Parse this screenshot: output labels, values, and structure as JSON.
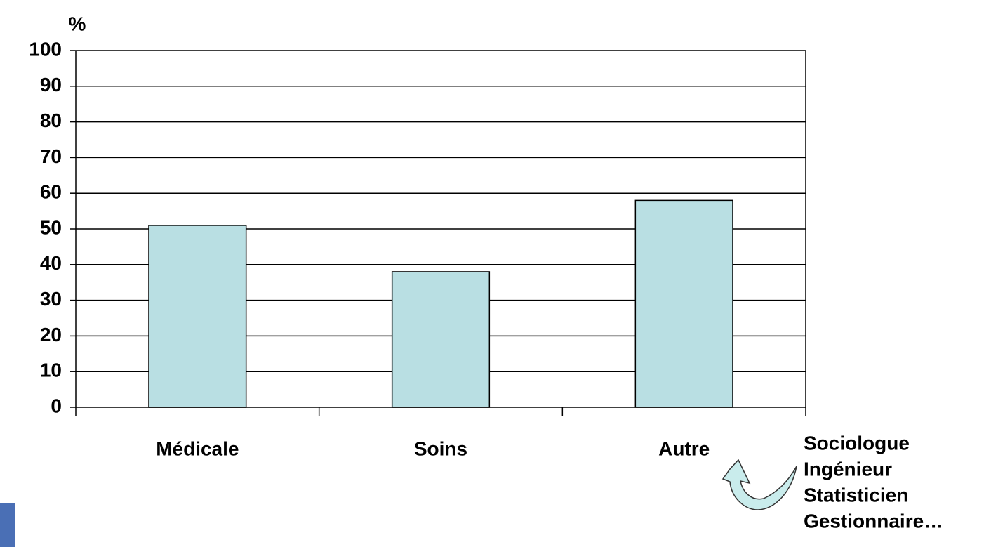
{
  "chart_data": {
    "type": "bar",
    "ylabel": "%",
    "categories": [
      "Médicale",
      "Soins",
      "Autre"
    ],
    "values": [
      51,
      38,
      58
    ],
    "color": "#b9dfe3",
    "ylim": [
      0,
      100
    ],
    "yticks": [
      0,
      10,
      20,
      30,
      40,
      50,
      60,
      70,
      80,
      90,
      100
    ],
    "grid": true,
    "annotations": [
      "Sociologue",
      "Ingénieur",
      "Statisticien",
      "Gestionnaire…"
    ]
  }
}
